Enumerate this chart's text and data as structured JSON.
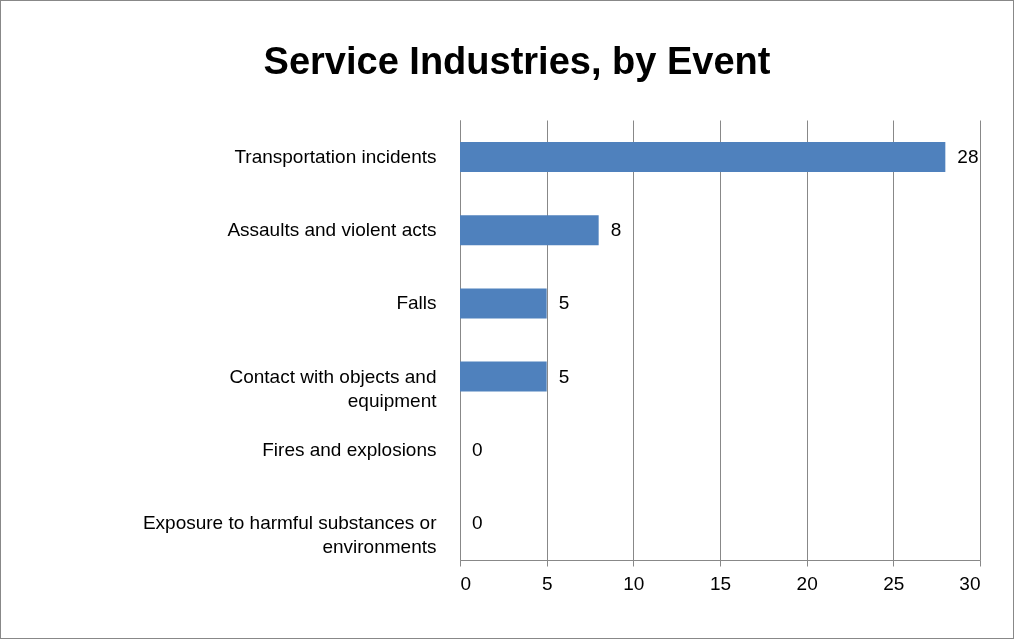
{
  "chart_data": {
    "type": "bar",
    "orientation": "horizontal",
    "title": "Service Industries, by Event",
    "categories": [
      "Transportation incidents",
      "Assaults and violent acts",
      "Falls",
      "Contact with objects and equipment",
      "Fires and explosions",
      "Exposure to harmful substances or environments"
    ],
    "values": [
      28,
      8,
      5,
      5,
      0,
      0
    ],
    "color": "#4f81bd",
    "xlim": [
      0,
      30
    ],
    "xticks": [
      0,
      5,
      10,
      15,
      20,
      25,
      30
    ],
    "grid": "x",
    "data_labels": true
  }
}
